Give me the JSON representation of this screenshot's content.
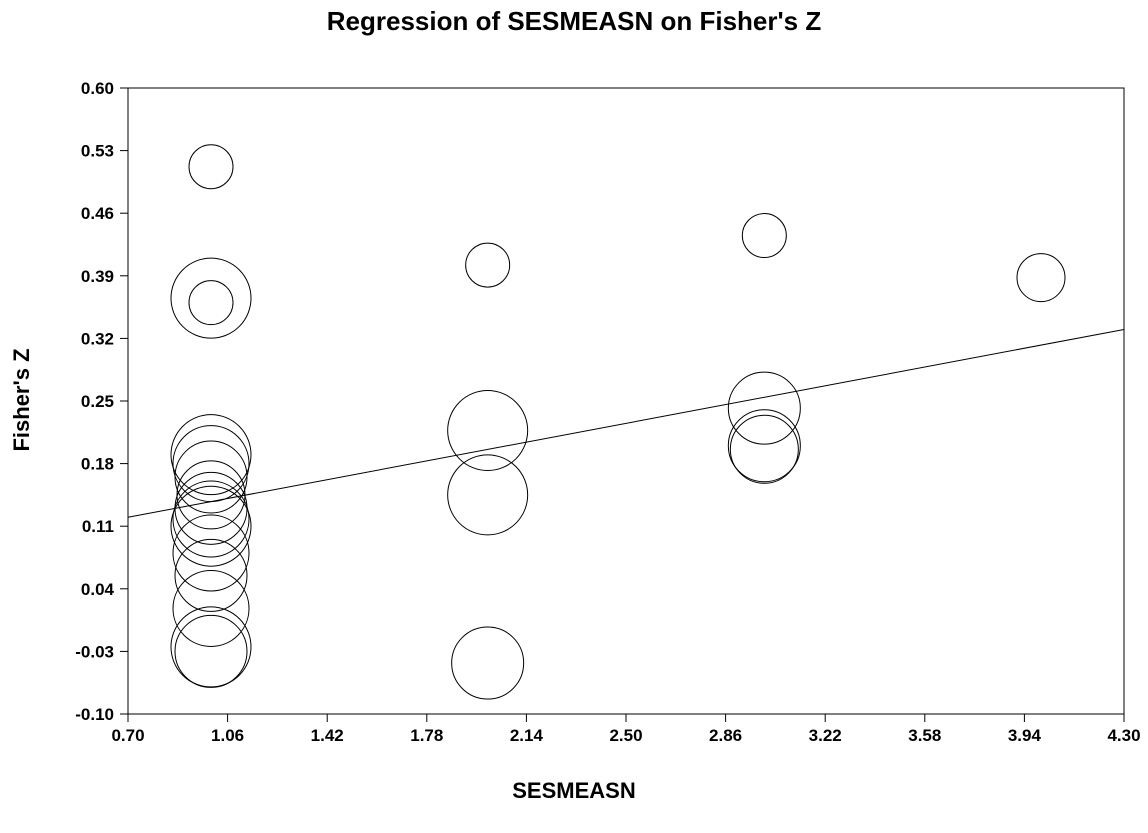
{
  "chart_data": {
    "type": "scatter",
    "title": "Regression of SESMEASN on Fisher's Z",
    "xlabel": "SESMEASN",
    "ylabel": "Fisher's Z",
    "xlim": [
      0.7,
      4.3
    ],
    "ylim": [
      -0.1,
      0.6
    ],
    "x_ticks": [
      "0.70",
      "1.06",
      "1.42",
      "1.78",
      "2.14",
      "2.50",
      "2.86",
      "3.22",
      "3.58",
      "3.94",
      "4.30"
    ],
    "y_ticks": [
      "0.60",
      "0.53",
      "0.46",
      "0.39",
      "0.32",
      "0.25",
      "0.18",
      "0.11",
      "0.04",
      "-0.03",
      "-0.10"
    ],
    "grid": false,
    "points": [
      {
        "x": 1.0,
        "y": 0.512,
        "weight": 0.55
      },
      {
        "x": 1.0,
        "y": 0.365,
        "weight": 1.0
      },
      {
        "x": 1.0,
        "y": 0.36,
        "weight": 0.55
      },
      {
        "x": 1.0,
        "y": 0.19,
        "weight": 1.0
      },
      {
        "x": 1.0,
        "y": 0.18,
        "weight": 0.95
      },
      {
        "x": 1.0,
        "y": 0.165,
        "weight": 0.9
      },
      {
        "x": 1.0,
        "y": 0.145,
        "weight": 0.85
      },
      {
        "x": 1.0,
        "y": 0.13,
        "weight": 0.9
      },
      {
        "x": 1.0,
        "y": 0.118,
        "weight": 0.95
      },
      {
        "x": 1.0,
        "y": 0.11,
        "weight": 1.0
      },
      {
        "x": 1.0,
        "y": 0.08,
        "weight": 0.95
      },
      {
        "x": 1.0,
        "y": 0.055,
        "weight": 0.9
      },
      {
        "x": 1.0,
        "y": 0.018,
        "weight": 0.95
      },
      {
        "x": 1.0,
        "y": -0.025,
        "weight": 1.0
      },
      {
        "x": 1.0,
        "y": -0.03,
        "weight": 0.9
      },
      {
        "x": 2.0,
        "y": 0.402,
        "weight": 0.55
      },
      {
        "x": 2.0,
        "y": 0.217,
        "weight": 1.0
      },
      {
        "x": 2.0,
        "y": 0.145,
        "weight": 1.0
      },
      {
        "x": 2.0,
        "y": -0.043,
        "weight": 0.9
      },
      {
        "x": 3.0,
        "y": 0.435,
        "weight": 0.55
      },
      {
        "x": 3.0,
        "y": 0.242,
        "weight": 0.9
      },
      {
        "x": 3.0,
        "y": 0.2,
        "weight": 0.9
      },
      {
        "x": 3.0,
        "y": 0.196,
        "weight": 0.85
      },
      {
        "x": 4.0,
        "y": 0.388,
        "weight": 0.6
      }
    ],
    "regression_line": {
      "x": [
        0.7,
        4.3
      ],
      "y": [
        0.12,
        0.33
      ]
    }
  }
}
